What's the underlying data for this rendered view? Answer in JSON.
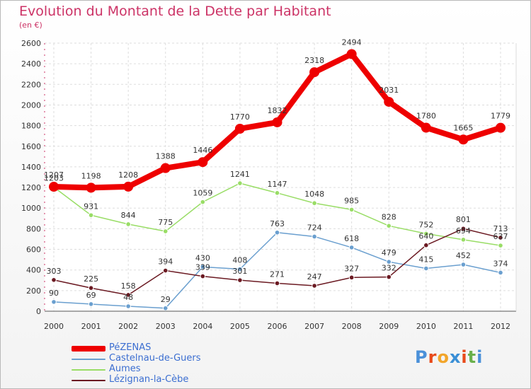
{
  "title": "Evolution du Montant de la Dette par Habitant",
  "unit": "(en €)",
  "logo": {
    "text": "Proxiti",
    "letter_colors": [
      "#4a90d9",
      "#e84a1a",
      "#f2a52a",
      "#3a8fd6",
      "#e84a1a",
      "#6ab04c",
      "#4a90d9"
    ]
  },
  "chart_data": {
    "type": "line",
    "categories": [
      "2000",
      "2001",
      "2002",
      "2003",
      "2004",
      "2005",
      "2006",
      "2007",
      "2008",
      "2009",
      "2010",
      "2011",
      "2012"
    ],
    "yticks": [
      "0",
      "200",
      "400",
      "600",
      "800",
      "1000",
      "1200",
      "1400",
      "1600",
      "1800",
      "2000",
      "2200",
      "2400",
      "2600"
    ],
    "ylim": [
      0,
      2600
    ],
    "grid": true,
    "legend_position": "bottom-left",
    "series": [
      {
        "name": "Castelnau-de-Guers",
        "color": "#6a9fcf",
        "values": [
          90,
          69,
          48,
          29,
          430,
          408,
          763,
          724,
          618,
          479,
          415,
          452,
          374
        ]
      },
      {
        "name": "Aumes",
        "color": "#99dd66",
        "values": [
          1203,
          931,
          844,
          775,
          1059,
          1241,
          1147,
          1048,
          985,
          828,
          752,
          694,
          637
        ]
      },
      {
        "name": "Lézignan-la-Cèbe",
        "color": "#6b1a22",
        "values": [
          303,
          225,
          158,
          394,
          339,
          301,
          271,
          247,
          327,
          332,
          640,
          801,
          713
        ]
      },
      {
        "name": "PéZENAS",
        "color": "#ee0000",
        "values": [
          1207,
          1198,
          1208,
          1388,
          1446,
          1770,
          1832,
          2318,
          2494,
          2031,
          1780,
          1665,
          1779
        ]
      }
    ],
    "legend_order": [
      "PéZENAS",
      "Castelnau-de-Guers",
      "Aumes",
      "Lézignan-la-Cèbe"
    ],
    "highlight_series": "PéZENAS"
  }
}
